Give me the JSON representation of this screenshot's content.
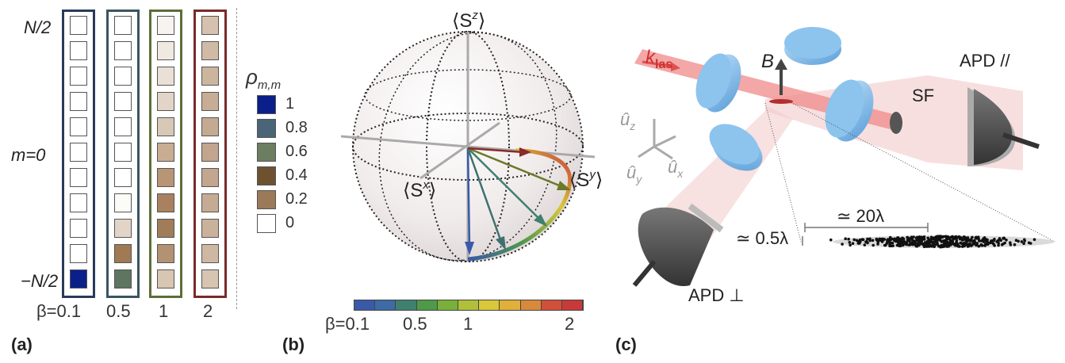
{
  "panel_a": {
    "label": "(a)",
    "y_ticks": {
      "top": "N/2",
      "mid": "m=0",
      "bottom": "−N/2"
    },
    "beta_prefix": "β=0.1",
    "columns": [
      {
        "beta": "β=0.1",
        "frame_color": "#2a3a5a",
        "cells": [
          "#ffffff",
          "#ffffff",
          "#ffffff",
          "#ffffff",
          "#ffffff",
          "#ffffff",
          "#ffffff",
          "#ffffff",
          "#ffffff",
          "#ffffff",
          "#0b1f8a"
        ]
      },
      {
        "beta": "0.5",
        "frame_color": "#3a5560",
        "cells": [
          "#ffffff",
          "#ffffff",
          "#ffffff",
          "#ffffff",
          "#ffffff",
          "#ffffff",
          "#ffffff",
          "#fbfbf8",
          "#e2d5c8",
          "#a07a52",
          "#5e7560"
        ]
      },
      {
        "beta": "1",
        "frame_color": "#5c6e38",
        "cells": [
          "#f7f3ee",
          "#f0e9e1",
          "#eae0d6",
          "#e2d5c7",
          "#d8c8b6",
          "#c9ad92",
          "#b89575",
          "#a98160",
          "#a07c58",
          "#b29273",
          "#d8c6b2"
        ]
      },
      {
        "beta": "2",
        "frame_color": "#7a2a2a",
        "cells": [
          "#d5c1ad",
          "#d0baa5",
          "#ccb59f",
          "#c7ad95",
          "#c4aa92",
          "#c1a58e",
          "#c2a690",
          "#c6ab94",
          "#cab19b",
          "#cfb8a3",
          "#d7c4b1"
        ]
      }
    ]
  },
  "legend": {
    "title": "ρm,m",
    "entries": [
      {
        "value": "1",
        "color": "#0b1f8a"
      },
      {
        "value": "0.8",
        "color": "#4a6478"
      },
      {
        "value": "0.6",
        "color": "#6c7e60"
      },
      {
        "value": "0.4",
        "color": "#6e5230"
      },
      {
        "value": "0.2",
        "color": "#9a7a58"
      },
      {
        "value": "0",
        "color": "#ffffff"
      }
    ]
  },
  "panel_b": {
    "label": "(b)",
    "axis_z": "⟨Sz⟩",
    "axis_x": "⟨Sx⟩",
    "axis_y": "⟨Sy⟩",
    "colorbar_colors": [
      "#3a5aa8",
      "#3e6aa6",
      "#3f8070",
      "#4f9a48",
      "#78b03a",
      "#b0c03a",
      "#d8c83a",
      "#e0b03a",
      "#d88a3a",
      "#d0503a",
      "#c83a3a"
    ],
    "colorbar_labels": [
      "β=0.1",
      "0.5",
      "1",
      "2"
    ]
  },
  "panel_c": {
    "label": "(c)",
    "k_las": "k",
    "k_sub": "las",
    "b_field": "B",
    "sf": "SF",
    "apd_par": "APD //",
    "apd_perp": "APD ⊥",
    "dim_long": "≃ 20λ",
    "dim_short": "≃ 0.5λ",
    "u_z": "u",
    "u_y": "u",
    "u_x": "u"
  }
}
